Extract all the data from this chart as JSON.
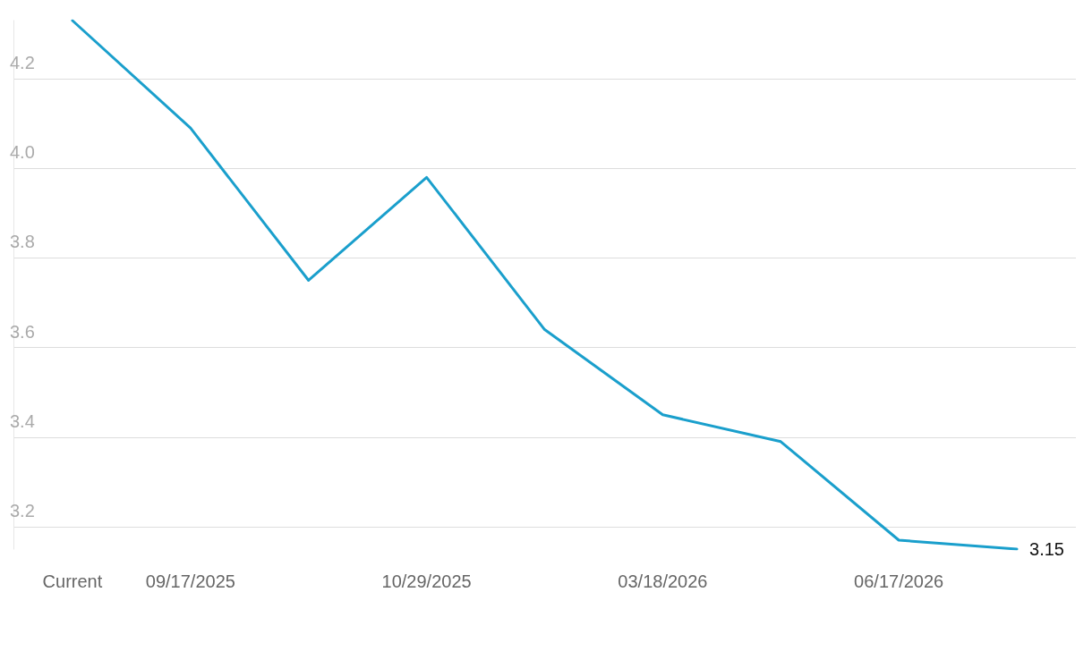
{
  "chart_data": {
    "type": "line",
    "categories": [
      "Current",
      "09/17/2025",
      null,
      "10/29/2025",
      null,
      "03/18/2026",
      null,
      "06/17/2026",
      null
    ],
    "series": [
      {
        "color": "#1a9fcc",
        "values": [
          4.33,
          4.09,
          3.75,
          3.98,
          3.64,
          3.45,
          3.39,
          3.17,
          3.15
        ],
        "value_labels": [
          null,
          null,
          null,
          null,
          null,
          null,
          null,
          null,
          "3.15"
        ]
      }
    ],
    "ylim": [
      3.15,
      4.33
    ],
    "yticks": [
      3.2,
      3.4,
      3.6,
      3.8,
      {
        "value": 4,
        "label": "4.0"
      },
      4.2
    ],
    "grid": "y",
    "marker": "none",
    "line_style": "solid"
  }
}
